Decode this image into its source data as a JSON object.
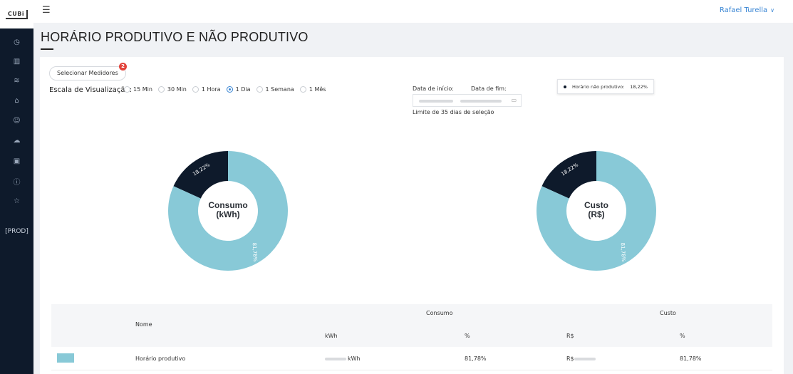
{
  "sidebar": {
    "logo": "CUBi",
    "env_label": "[PROD]",
    "items": [
      {
        "icon": "clock-icon",
        "glyph": "◷"
      },
      {
        "icon": "bar-chart-icon",
        "glyph": "▥"
      },
      {
        "icon": "wifi-icon",
        "glyph": "≋"
      },
      {
        "icon": "bank-icon",
        "glyph": "⌂"
      },
      {
        "icon": "user-icon",
        "glyph": "☺"
      },
      {
        "icon": "cloud-upload-icon",
        "glyph": "☁"
      },
      {
        "icon": "calculator-icon",
        "glyph": "▣"
      },
      {
        "icon": "info-icon",
        "glyph": "ⓘ"
      },
      {
        "icon": "star-icon",
        "glyph": "☆"
      }
    ]
  },
  "topbar": {
    "menu_glyph": "☰",
    "user_name": "Rafael Turella",
    "user_chevron": "∨"
  },
  "page": {
    "title": "HORÁRIO PRODUTIVO E NÃO PRODUTIVO"
  },
  "controls": {
    "select_button": "Selecionar Medidores",
    "badge_count": "2",
    "scale_label": "Escala de Visualização:",
    "scale_options": [
      {
        "label": "15 Min",
        "selected": false
      },
      {
        "label": "30 Min",
        "selected": false
      },
      {
        "label": "1 Hora",
        "selected": false
      },
      {
        "label": "1 Dia",
        "selected": true
      },
      {
        "label": "1 Semana",
        "selected": false
      },
      {
        "label": "1 Mês",
        "selected": false
      }
    ],
    "date_start_label": "Data de início:",
    "date_end_label": "Data de fim:",
    "calendar_glyph": "▭",
    "date_limit": "Limite de 35 dias de seleção"
  },
  "chart_data": [
    {
      "type": "pie",
      "title": "Consumo (kWh)",
      "center_lines": [
        "Consumo",
        "(kWh)"
      ],
      "categories": [
        "Horário não produtivo",
        "Horário produtivo"
      ],
      "values": [
        18.22,
        81.78
      ],
      "labels": [
        "18,22%",
        "81,78%"
      ],
      "colors": [
        "#0e1a2b",
        "#88c9d7"
      ]
    },
    {
      "type": "pie",
      "title": "Custo (R$)",
      "center_lines": [
        "Custo",
        "(R$)"
      ],
      "categories": [
        "Horário não produtivo",
        "Horário produtivo"
      ],
      "values": [
        18.22,
        81.78
      ],
      "labels": [
        "18,22%",
        "81,78%"
      ],
      "colors": [
        "#0e1a2b",
        "#88c9d7"
      ]
    }
  ],
  "tooltip": {
    "label": "Horário não produtivo:",
    "value": "18,22%"
  },
  "table": {
    "header_nome": "Nome",
    "header_consumo": "Consumo",
    "header_custo": "Custo",
    "sub_kwh": "kWh",
    "sub_pct1": "%",
    "sub_rs": "R$",
    "sub_pct2": "%",
    "rows": [
      {
        "name": "Horário produtivo",
        "kwh_suffix": "kWh",
        "pct_consumo": "81,78%",
        "rs_prefix": "R$",
        "pct_custo": "81,78%",
        "color": "#88c9d7"
      }
    ]
  }
}
